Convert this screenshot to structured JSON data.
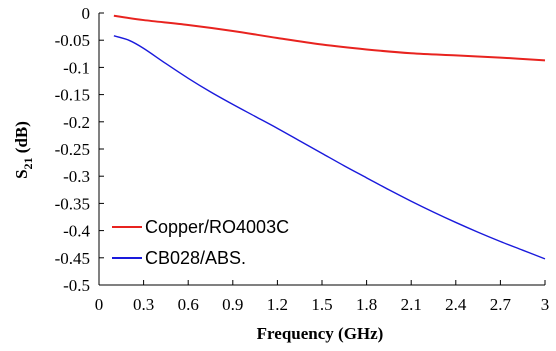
{
  "chart_data": {
    "type": "line",
    "xlabel": "Frequency (GHz)",
    "ylabel": {
      "main": "S",
      "sub": "21",
      "unit": " (dB)"
    },
    "xlim": [
      0,
      3
    ],
    "ylim": [
      -0.5,
      0
    ],
    "x_ticks": [
      "0",
      "0.3",
      "0.6",
      "0.9",
      "1.2",
      "1.5",
      "1.8",
      "2.1",
      "2.4",
      "2.7",
      "3"
    ],
    "y_ticks": [
      "0",
      "-0.05",
      "-0.1",
      "-0.15",
      "-0.2",
      "-0.25",
      "-0.3",
      "-0.35",
      "-0.4",
      "-0.45",
      "-0.5"
    ],
    "grid": false,
    "legend_position": "bottom-left",
    "series": [
      {
        "name": "Copper/RO4003C",
        "color": "#e8231f",
        "x": [
          0.1,
          0.3,
          0.6,
          0.9,
          1.2,
          1.5,
          1.8,
          2.1,
          2.4,
          2.7,
          3.0
        ],
        "y": [
          -0.005,
          -0.013,
          -0.022,
          -0.033,
          -0.046,
          -0.058,
          -0.067,
          -0.074,
          -0.078,
          -0.082,
          -0.087
        ]
      },
      {
        "name": "CB028/ABS.",
        "color": "#1a1adc",
        "x": [
          0.1,
          0.2,
          0.3,
          0.45,
          0.6,
          0.75,
          0.9,
          1.05,
          1.2,
          1.35,
          1.5,
          1.65,
          1.8,
          1.95,
          2.1,
          2.25,
          2.4,
          2.55,
          2.7,
          2.85,
          3.0
        ],
        "y": [
          -0.042,
          -0.05,
          -0.065,
          -0.093,
          -0.12,
          -0.145,
          -0.168,
          -0.19,
          -0.212,
          -0.235,
          -0.258,
          -0.281,
          -0.303,
          -0.325,
          -0.346,
          -0.366,
          -0.385,
          -0.403,
          -0.42,
          -0.436,
          -0.452
        ]
      }
    ]
  }
}
